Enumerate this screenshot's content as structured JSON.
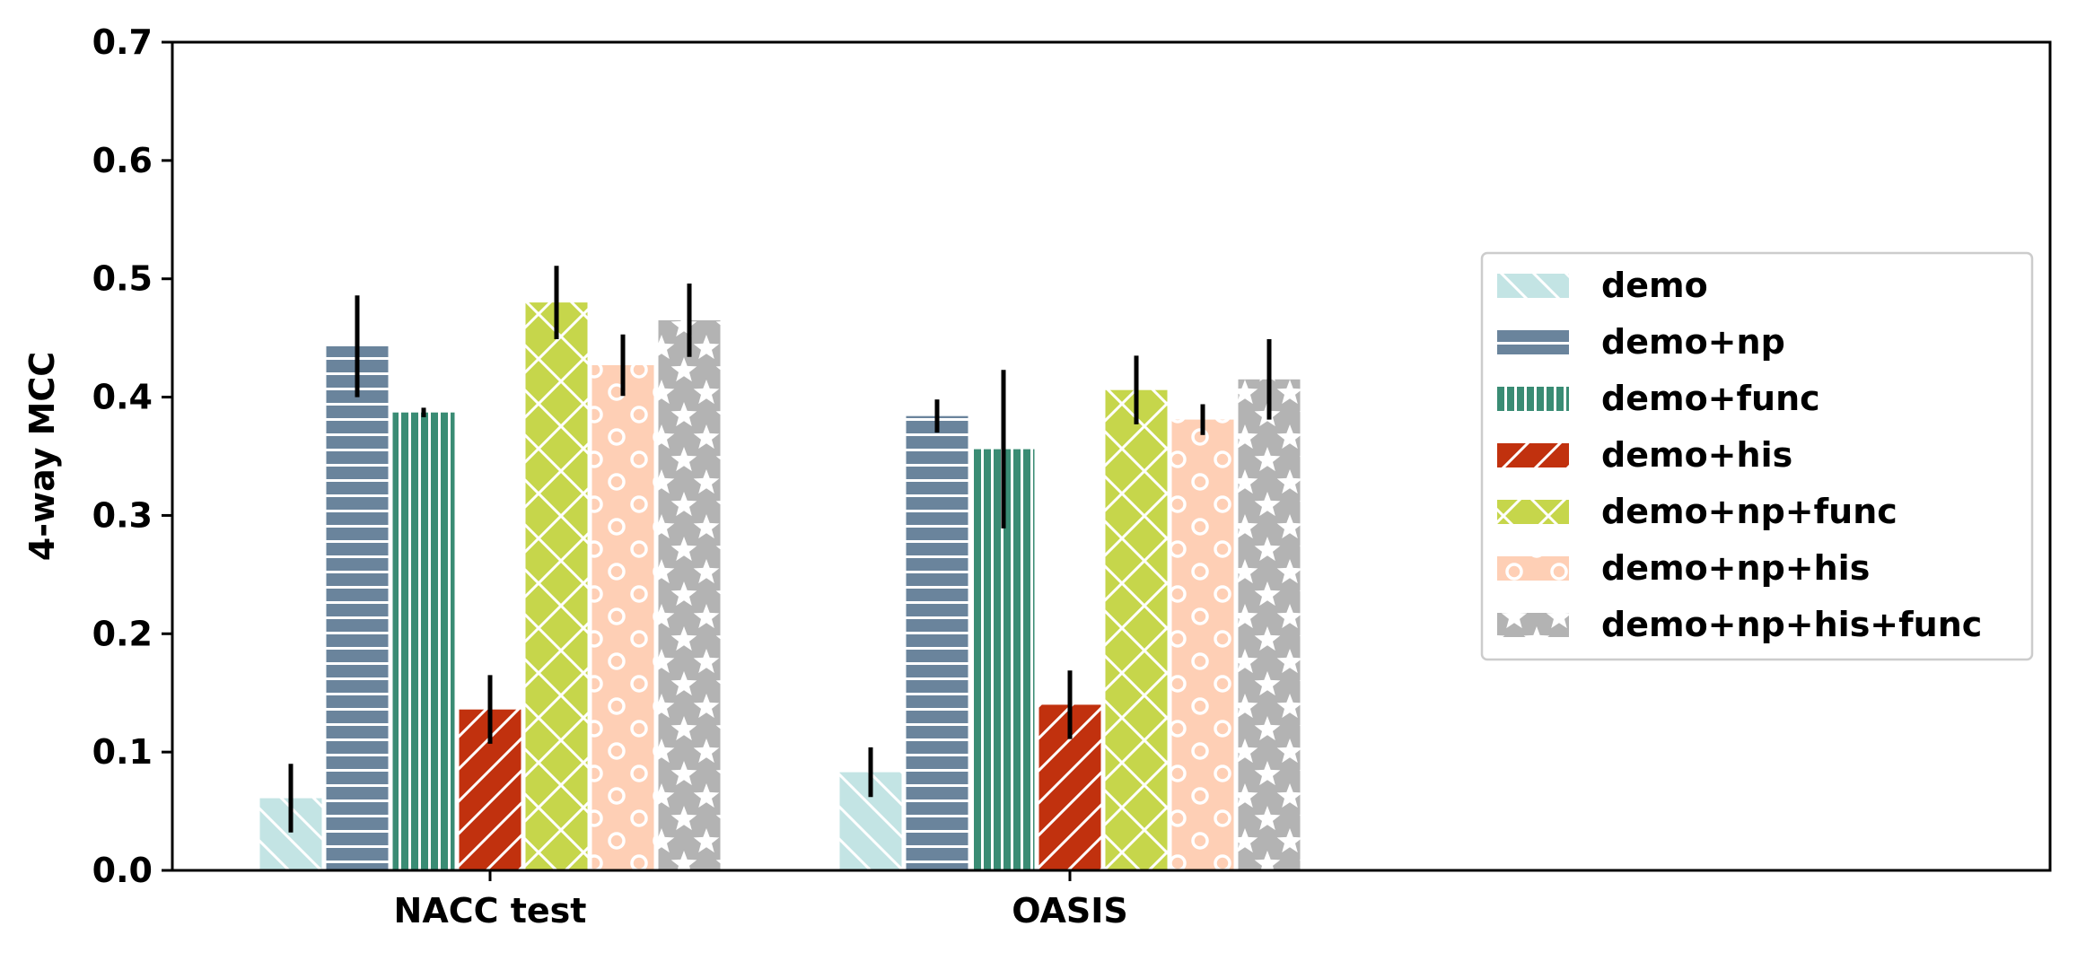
{
  "chart_data": {
    "type": "bar",
    "title": "",
    "xlabel": "",
    "ylabel": "4-way MCC",
    "ylim": [
      0,
      0.7
    ],
    "yticks": [
      "0.0",
      "0.1",
      "0.2",
      "0.3",
      "0.4",
      "0.5",
      "0.6",
      "0.7"
    ],
    "categories": [
      "NACC test",
      "OASIS"
    ],
    "legend_position": "center-right",
    "grid": false,
    "series": [
      {
        "name": "demo",
        "values": [
          0.061,
          0.083
        ],
        "errors": [
          0.029,
          0.021
        ],
        "color": "#c3e4e4",
        "pattern": "backslash"
      },
      {
        "name": "demo+np",
        "values": [
          0.443,
          0.384
        ],
        "errors": [
          0.043,
          0.014
        ],
        "color": "#6a849c",
        "pattern": "horizontal"
      },
      {
        "name": "demo+func",
        "values": [
          0.387,
          0.356
        ],
        "errors": [
          0.004,
          0.067
        ],
        "color": "#3a8c74",
        "pattern": "vertical"
      },
      {
        "name": "demo+his",
        "values": [
          0.136,
          0.14
        ],
        "errors": [
          0.029,
          0.029
        ],
        "color": "#c1310e",
        "pattern": "slash"
      },
      {
        "name": "demo+np+func",
        "values": [
          0.48,
          0.406
        ],
        "errors": [
          0.031,
          0.029
        ],
        "color": "#c6d64b",
        "pattern": "cross"
      },
      {
        "name": "demo+np+his",
        "values": [
          0.427,
          0.381
        ],
        "errors": [
          0.026,
          0.013
        ],
        "color": "#fecfb5",
        "pattern": "circles"
      },
      {
        "name": "demo+np+his+func",
        "values": [
          0.465,
          0.415
        ],
        "errors": [
          0.031,
          0.034
        ],
        "color": "#b3b3b3",
        "pattern": "stars"
      }
    ]
  }
}
